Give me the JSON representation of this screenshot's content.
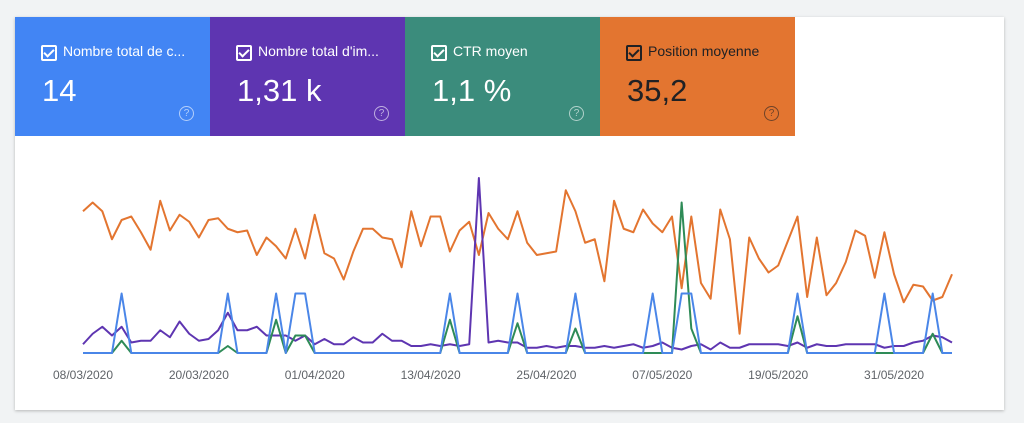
{
  "cards": [
    {
      "title": "Nombre total de c...",
      "value": "14",
      "color": "#4285f4",
      "text_color": "#ffffff"
    },
    {
      "title": "Nombre total d'im...",
      "value": "1,31 k",
      "color": "#5e35b1",
      "text_color": "#ffffff"
    },
    {
      "title": "CTR moyen",
      "value": "1,1 %",
      "color": "#3b8c7c",
      "text_color": "#ffffff"
    },
    {
      "title": "Position moyenne",
      "value": "35,2",
      "color": "#e37530",
      "text_color": "#202124"
    }
  ],
  "chart_data": {
    "type": "line",
    "categories": [
      "08/03/2020",
      null,
      null,
      null,
      null,
      null,
      null,
      null,
      null,
      null,
      null,
      null,
      "20/03/2020",
      null,
      null,
      null,
      null,
      null,
      null,
      null,
      null,
      null,
      null,
      null,
      "01/04/2020",
      null,
      null,
      null,
      null,
      null,
      null,
      null,
      null,
      null,
      null,
      null,
      "13/04/2020",
      null,
      null,
      null,
      null,
      null,
      null,
      null,
      null,
      null,
      null,
      null,
      "25/04/2020",
      null,
      null,
      null,
      null,
      null,
      null,
      null,
      null,
      null,
      null,
      null,
      "07/05/2020",
      null,
      null,
      null,
      null,
      null,
      null,
      null,
      null,
      null,
      null,
      null,
      "19/05/2020",
      null,
      null,
      null,
      null,
      null,
      null,
      null,
      null,
      null,
      null,
      null,
      "31/05/2020",
      null,
      null,
      null,
      null,
      null,
      null
    ],
    "ylim": [
      0,
      100
    ],
    "series": [
      {
        "color": "#e37530",
        "values": [
          81,
          86,
          81,
          65,
          76,
          78,
          69,
          59,
          87,
          70,
          79,
          75,
          66,
          76,
          77,
          71,
          69,
          70,
          56,
          66,
          61,
          54,
          71,
          54,
          79,
          57,
          54,
          42,
          58,
          71,
          71,
          66,
          65,
          49,
          81,
          61,
          78,
          78,
          58,
          70,
          75,
          56,
          80,
          71,
          65,
          81,
          63,
          56,
          57,
          58,
          93,
          81,
          63,
          65,
          41,
          87,
          71,
          69,
          82,
          74,
          69,
          78,
          37,
          78,
          40,
          31,
          82,
          65,
          11,
          66,
          54,
          46,
          50,
          64,
          78,
          32,
          66,
          33,
          40,
          52,
          70,
          67,
          43,
          69,
          45,
          29,
          39,
          38,
          30,
          32,
          45
        ]
      },
      {
        "color": "#5e35b1",
        "values": [
          5,
          11,
          15,
          10,
          15,
          6,
          7,
          7,
          13,
          9,
          18,
          11,
          7,
          8,
          13,
          23,
          13,
          13,
          15,
          10,
          10,
          10,
          7,
          10,
          5,
          8,
          5,
          5,
          9,
          6,
          6,
          11,
          7,
          7,
          4,
          4,
          5,
          4,
          5,
          4,
          5,
          100,
          6,
          7,
          6,
          6,
          3,
          3,
          4,
          3,
          4,
          4,
          3,
          3,
          4,
          3,
          4,
          5,
          3,
          4,
          6,
          3,
          2,
          4,
          5,
          2,
          6,
          3,
          3,
          5,
          5,
          5,
          5,
          4,
          6,
          3,
          5,
          4,
          4,
          5,
          5,
          5,
          5,
          3,
          4,
          4,
          6,
          7,
          10,
          9,
          6
        ]
      },
      {
        "color": "#2e8b57",
        "values": [
          0,
          0,
          0,
          0,
          7,
          0,
          0,
          0,
          0,
          0,
          0,
          0,
          0,
          0,
          0,
          4,
          0,
          0,
          0,
          0,
          19,
          0,
          10,
          10,
          0,
          0,
          0,
          0,
          0,
          0,
          0,
          0,
          0,
          0,
          0,
          0,
          0,
          0,
          19,
          0,
          0,
          0,
          0,
          0,
          0,
          17,
          0,
          0,
          0,
          0,
          0,
          14,
          0,
          0,
          0,
          0,
          0,
          0,
          0,
          0,
          0,
          0,
          86,
          14,
          0,
          0,
          0,
          0,
          0,
          0,
          0,
          0,
          0,
          0,
          21,
          0,
          0,
          0,
          0,
          0,
          0,
          0,
          0,
          0,
          0,
          0,
          0,
          0,
          11,
          0,
          0
        ]
      },
      {
        "color": "#4a86e8",
        "values": [
          0,
          0,
          0,
          0,
          34,
          0,
          0,
          0,
          0,
          0,
          0,
          0,
          0,
          0,
          0,
          34,
          0,
          0,
          0,
          0,
          34,
          0,
          34,
          34,
          0,
          0,
          0,
          0,
          0,
          0,
          0,
          0,
          0,
          0,
          0,
          0,
          0,
          0,
          34,
          0,
          0,
          0,
          0,
          0,
          0,
          34,
          0,
          0,
          0,
          0,
          0,
          34,
          0,
          0,
          0,
          0,
          0,
          0,
          0,
          34,
          0,
          0,
          34,
          34,
          0,
          0,
          0,
          0,
          0,
          0,
          0,
          0,
          0,
          0,
          34,
          0,
          0,
          0,
          0,
          0,
          0,
          0,
          0,
          34,
          0,
          0,
          0,
          0,
          34,
          0,
          0
        ]
      }
    ]
  }
}
